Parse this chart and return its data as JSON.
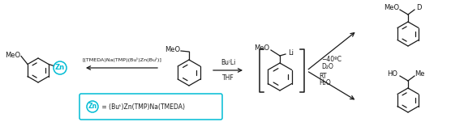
{
  "background_color": "#ffffff",
  "fig_width": 5.56,
  "fig_height": 1.51,
  "dpi": 100,
  "left_molecule": {
    "label": "MeO",
    "zn_label": "Zn",
    "zn_color": "#00bcd4",
    "zn_circle_color": "#00bcd4"
  },
  "arrow_left": {
    "text": "[(TMEDA)Na(TMP)(Buᵗ)Zn(Buᵗ)]",
    "direction": "left"
  },
  "center_molecule": {
    "label": "MeO"
  },
  "arrow_center": {
    "text_line1": "Bu⁾Li",
    "text_line2": "THF",
    "direction": "right"
  },
  "intermediate": {
    "meo_label": "MeO",
    "li_label": "Li"
  },
  "top_product": {
    "condition_line1": "−40ºC",
    "condition_line2": "D₂O",
    "meo_label": "MeO",
    "d_label": "D"
  },
  "bottom_product": {
    "condition_line1": "RT",
    "condition_line2": "H₂O",
    "ho_label": "HO",
    "me_label": "Me"
  },
  "legend_box": {
    "zn_label": "Zn",
    "zn_color": "#00bcd4",
    "text": " = (Buᵗ)Zn(TMP)Na(TMEDA)",
    "box_color": "#00bcd4"
  },
  "text_color": "#1a1a1a",
  "line_color": "#1a1a1a"
}
